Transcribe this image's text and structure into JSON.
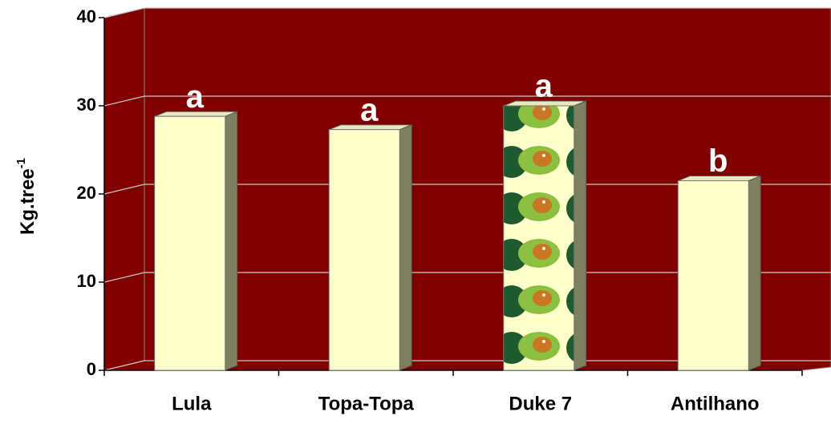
{
  "chart_data": {
    "type": "bar3d",
    "y_label": "Kg.tree",
    "y_label_superscript": "-1",
    "categories": [
      "Lula",
      "Topa-Topa",
      "Duke 7",
      "Antilhano"
    ],
    "values": [
      28.8,
      27.3,
      30,
      21.5
    ],
    "significance": [
      "a",
      "a",
      "a",
      "b"
    ],
    "colors": [
      "#ffffcc",
      "#ffffcc",
      "url(#avocado)",
      "#ffffcc"
    ],
    "background": "#800000",
    "ylim": [
      0,
      40
    ],
    "yticks": [
      0,
      10,
      20,
      30,
      40
    ],
    "grid": true
  }
}
